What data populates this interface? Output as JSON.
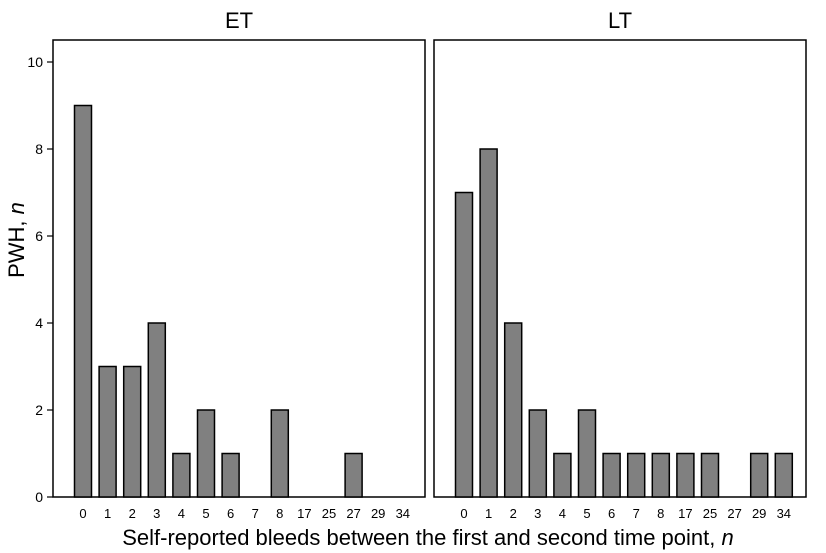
{
  "chart_data": {
    "type": "bar",
    "ylabel": "PWH, ",
    "ylabel_italic": "n",
    "xlabel": "Self-reported bleeds between the first and second time point, ",
    "xlabel_italic": "n",
    "ylim": [
      0,
      10.6
    ],
    "yticks": [
      0,
      2,
      4,
      6,
      8,
      10
    ],
    "bar_color": "#808080",
    "panels": [
      {
        "title": "ET",
        "categories": [
          "0",
          "1",
          "2",
          "3",
          "4",
          "5",
          "6",
          "7",
          "8",
          "17",
          "25",
          "27",
          "29",
          "34"
        ],
        "values": [
          9,
          3,
          3,
          4,
          1,
          2,
          1,
          0,
          2,
          0,
          0,
          1,
          0,
          0
        ]
      },
      {
        "title": "LT",
        "categories": [
          "0",
          "1",
          "2",
          "3",
          "4",
          "5",
          "6",
          "7",
          "8",
          "17",
          "25",
          "27",
          "29",
          "34"
        ],
        "values": [
          7,
          8,
          4,
          2,
          1,
          2,
          1,
          1,
          1,
          1,
          1,
          0,
          1,
          1
        ]
      }
    ]
  }
}
